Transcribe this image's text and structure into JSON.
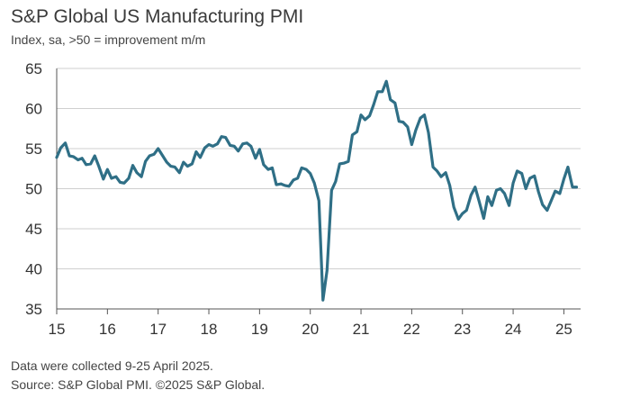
{
  "title": "S&P Global US Manufacturing PMI",
  "subtitle": "Index, sa, >50 = improvement m/m",
  "footnote": "Data were collected 9-25 April 2025.",
  "source": "Source: S&P Global PMI. ©2025 S&P Global.",
  "colors": {
    "line": "#2f6f86",
    "grid": "#cfcfcf",
    "axis": "#555555"
  },
  "chart_data": {
    "type": "line",
    "title": "S&P Global US Manufacturing PMI",
    "xlabel": "",
    "ylabel": "",
    "ylim": [
      35,
      65
    ],
    "xlim": [
      2015.0,
      2025.33
    ],
    "y_ticks": [
      35,
      40,
      45,
      50,
      55,
      60,
      65
    ],
    "x_ticks": [
      {
        "label": "15",
        "x": 2015.0
      },
      {
        "label": "16",
        "x": 2016.0
      },
      {
        "label": "17",
        "x": 2017.0
      },
      {
        "label": "18",
        "x": 2018.0
      },
      {
        "label": "19",
        "x": 2019.0
      },
      {
        "label": "20",
        "x": 2020.0
      },
      {
        "label": "21",
        "x": 2021.0
      },
      {
        "label": "22",
        "x": 2022.0
      },
      {
        "label": "23",
        "x": 2023.0
      },
      {
        "label": "24",
        "x": 2024.0
      },
      {
        "label": "25",
        "x": 2025.0
      }
    ],
    "grid": "horizontal",
    "legend": "none",
    "series": [
      {
        "x": [
          2015.0,
          2015.08,
          2015.17,
          2015.25,
          2015.33,
          2015.42,
          2015.5,
          2015.58,
          2015.67,
          2015.75,
          2015.83,
          2015.92,
          2016.0,
          2016.08,
          2016.17,
          2016.25,
          2016.33,
          2016.42,
          2016.5,
          2016.58,
          2016.67,
          2016.75,
          2016.83,
          2016.92,
          2017.0,
          2017.08,
          2017.17,
          2017.25,
          2017.33,
          2017.42,
          2017.5,
          2017.58,
          2017.67,
          2017.75,
          2017.83,
          2017.92,
          2018.0,
          2018.08,
          2018.17,
          2018.25,
          2018.33,
          2018.42,
          2018.5,
          2018.58,
          2018.67,
          2018.75,
          2018.83,
          2018.92,
          2019.0,
          2019.08,
          2019.17,
          2019.25,
          2019.33,
          2019.42,
          2019.5,
          2019.58,
          2019.67,
          2019.75,
          2019.83,
          2019.92,
          2020.0,
          2020.08,
          2020.17,
          2020.25,
          2020.33,
          2020.42,
          2020.5,
          2020.58,
          2020.67,
          2020.75,
          2020.83,
          2020.92,
          2021.0,
          2021.08,
          2021.17,
          2021.25,
          2021.33,
          2021.42,
          2021.5,
          2021.58,
          2021.67,
          2021.75,
          2021.83,
          2021.92,
          2022.0,
          2022.08,
          2022.17,
          2022.25,
          2022.33,
          2022.42,
          2022.5,
          2022.58,
          2022.67,
          2022.75,
          2022.83,
          2022.92,
          2023.0,
          2023.08,
          2023.17,
          2023.25,
          2023.33,
          2023.42,
          2023.5,
          2023.58,
          2023.67,
          2023.75,
          2023.83,
          2023.92,
          2024.0,
          2024.08,
          2024.17,
          2024.25,
          2024.33,
          2024.42,
          2024.5,
          2024.58,
          2024.67,
          2024.75,
          2024.83,
          2024.92,
          2025.0,
          2025.08,
          2025.17,
          2025.25
        ],
        "values": [
          53.9,
          55.1,
          55.7,
          54.1,
          54.0,
          53.6,
          53.8,
          53.0,
          53.1,
          54.1,
          52.8,
          51.2,
          52.4,
          51.3,
          51.5,
          50.8,
          50.7,
          51.3,
          52.9,
          52.0,
          51.5,
          53.4,
          54.1,
          54.3,
          55.0,
          54.2,
          53.3,
          52.8,
          52.7,
          52.0,
          53.3,
          52.8,
          53.1,
          54.6,
          53.9,
          55.1,
          55.5,
          55.3,
          55.6,
          56.5,
          56.4,
          55.4,
          55.3,
          54.7,
          55.6,
          55.7,
          55.3,
          53.8,
          54.9,
          53.0,
          52.4,
          52.6,
          50.5,
          50.6,
          50.4,
          50.3,
          51.1,
          51.3,
          52.6,
          52.4,
          51.9,
          50.7,
          48.5,
          36.1,
          39.8,
          49.8,
          50.9,
          53.1,
          53.2,
          53.4,
          56.7,
          57.1,
          59.2,
          58.6,
          59.1,
          60.5,
          62.1,
          62.1,
          63.4,
          61.1,
          60.7,
          58.4,
          58.3,
          57.7,
          55.5,
          57.3,
          58.8,
          59.2,
          57.0,
          52.7,
          52.2,
          51.5,
          52.0,
          50.4,
          47.7,
          46.2,
          46.9,
          47.3,
          49.2,
          50.2,
          48.4,
          46.3,
          49.0,
          47.9,
          49.8,
          50.0,
          49.4,
          47.9,
          50.7,
          52.2,
          51.9,
          50.0,
          51.3,
          51.6,
          49.6,
          48.0,
          47.3,
          48.5,
          49.7,
          49.4,
          51.2,
          52.7,
          50.2,
          50.2
        ]
      }
    ]
  }
}
